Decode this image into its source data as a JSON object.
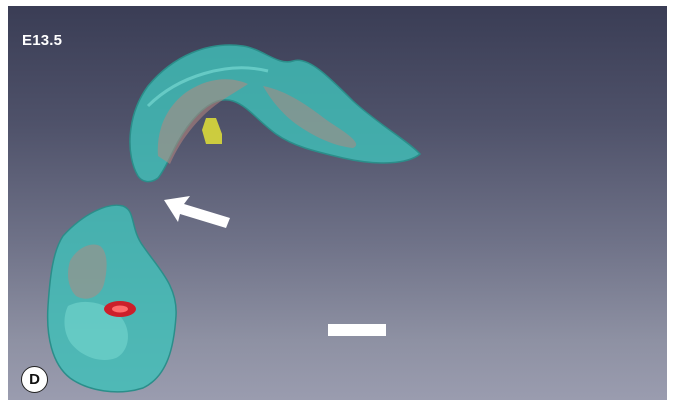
{
  "figure": {
    "stage_label": "E13.5",
    "panel_letter": "D"
  },
  "colors": {
    "background_top": "#3a3d55",
    "background_bottom": "#9a9caf",
    "tissue_teal": "#3fbfb8",
    "inner_tissue": "#b8867e",
    "yellow_structure": "#d9d93a",
    "red_structure": "#cc1f2a",
    "annotation_white": "#ffffff"
  }
}
